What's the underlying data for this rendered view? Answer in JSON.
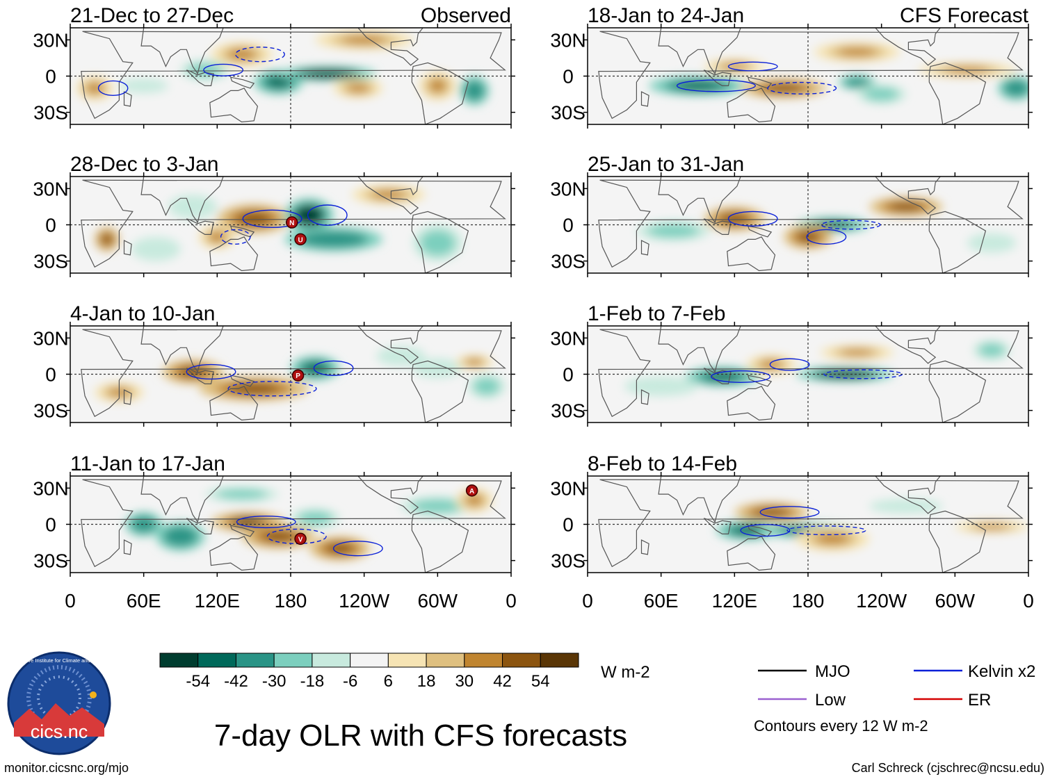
{
  "title": "7-day OLR with CFS forecasts",
  "footer_left": "monitor.cicsnc.org/mjo",
  "footer_right": "Carl Schreck (cjschrec@ncsu.edu)",
  "logo": {
    "text": "cics.nc",
    "ring_text": "Cooperative Institute for Climate and Satellites"
  },
  "colorbar": {
    "unit": "W m-2",
    "ticks": [
      "-54",
      "-42",
      "-30",
      "-18",
      "-6",
      "6",
      "18",
      "30",
      "42",
      "54"
    ],
    "colors": [
      "#003d2f",
      "#00695a",
      "#2a9486",
      "#7ccfbe",
      "#c8eade",
      "#f4f4f4",
      "#f6e4b4",
      "#dfc080",
      "#c08530",
      "#8c5510",
      "#5a3606"
    ]
  },
  "legend": {
    "items": [
      {
        "label": "MJO",
        "color": "#000000"
      },
      {
        "label": "Kelvin x2",
        "color": "#0a20d8"
      },
      {
        "label": "Low",
        "color": "#9a60d0"
      },
      {
        "label": "ER",
        "color": "#d40000"
      }
    ],
    "note": "Contours every 12 W m-2"
  },
  "axes": {
    "lat_labels": [
      "30N",
      "0",
      "30S"
    ],
    "lon_labels": [
      "0",
      "60E",
      "120E",
      "180",
      "120W",
      "60W",
      "0"
    ]
  },
  "left_header": "Observed",
  "right_header": "CFS Forecast",
  "storm_markers": [
    "N",
    "U",
    "P",
    "A",
    "V"
  ],
  "chart_data": {
    "type": "heatmap",
    "variable": "7-day OLR anomaly",
    "units": "W m-2",
    "lon_range": [
      0,
      360
    ],
    "lat_range": [
      -40,
      40
    ],
    "contour_interval": 12,
    "panels": [
      {
        "column": "Observed",
        "title": "21-Dec to 27-Dec",
        "markers": []
      },
      {
        "column": "Observed",
        "title": "28-Dec to 3-Jan",
        "markers": [
          {
            "label": "N",
            "lon": 181,
            "lat": 2
          },
          {
            "label": "U",
            "lon": 188,
            "lat": -12
          }
        ]
      },
      {
        "column": "Observed",
        "title": "4-Jan to 10-Jan",
        "markers": [
          {
            "label": "P",
            "lon": 186,
            "lat": -1
          }
        ]
      },
      {
        "column": "Observed",
        "title": "11-Jan to 17-Jan",
        "markers": [
          {
            "label": "A",
            "lon": 328,
            "lat": 28
          },
          {
            "label": "V",
            "lon": 188,
            "lat": -12
          }
        ]
      },
      {
        "column": "CFS Forecast",
        "title": "18-Jan to 24-Jan",
        "markers": []
      },
      {
        "column": "CFS Forecast",
        "title": "25-Jan to 31-Jan",
        "markers": []
      },
      {
        "column": "CFS Forecast",
        "title": "1-Feb to 7-Feb",
        "markers": []
      },
      {
        "column": "CFS Forecast",
        "title": "8-Feb to 14-Feb",
        "markers": []
      }
    ]
  }
}
